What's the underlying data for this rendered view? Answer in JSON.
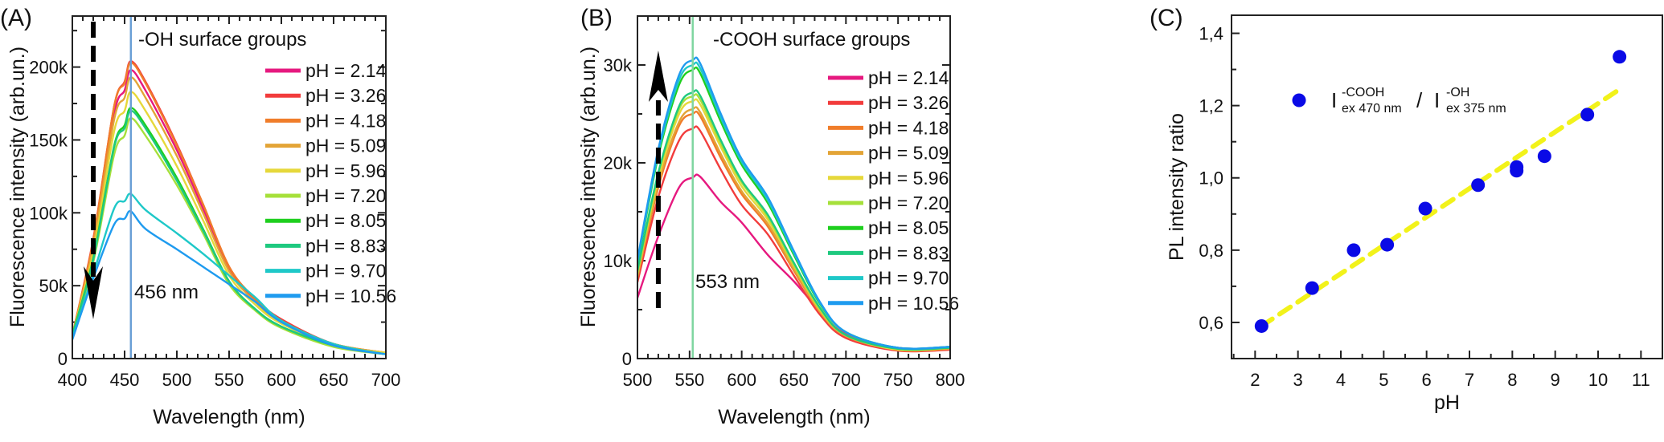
{
  "chart_data": [
    {
      "type": "line",
      "panel_label": "(A)",
      "annotation": "-OH surface groups",
      "peak_label": "456 nm",
      "peak_line": {
        "x": 456,
        "color": "#6a9fd6"
      },
      "arrow": {
        "x": 420,
        "direction": "down"
      },
      "xlabel": "Wavelength (nm)",
      "ylabel": "Fluorescence intensity (arb.un.)",
      "xlim": [
        400,
        700
      ],
      "ylim": [
        0,
        235000
      ],
      "xticks": [
        400,
        450,
        500,
        550,
        600,
        650,
        700
      ],
      "xtick_labels": [
        "400",
        "450",
        "500",
        "550",
        "600",
        "650",
        "700"
      ],
      "yticks": [
        0,
        50000,
        100000,
        150000,
        200000
      ],
      "ytick_labels": [
        "0",
        "50k",
        "100k",
        "150k",
        "200k"
      ],
      "legend_position": "right",
      "x": [
        400,
        420,
        440,
        450,
        456,
        470,
        500,
        525,
        550,
        575,
        600,
        650,
        700
      ],
      "series": [
        {
          "name": "pH = 2.14",
          "color": "#e6197f",
          "values": [
            16000,
            79000,
            168000,
            184000,
            198000,
            184000,
            143000,
            103000,
            61000,
            40000,
            26000,
            10000,
            4000
          ]
        },
        {
          "name": "pH = 3.26",
          "color": "#f23c3c",
          "values": [
            16000,
            82000,
            173000,
            190000,
            204000,
            190000,
            147000,
            106000,
            63000,
            41000,
            27000,
            10000,
            4000
          ]
        },
        {
          "name": "pH = 4.18",
          "color": "#f07d2a",
          "values": [
            16000,
            81000,
            173000,
            189000,
            203000,
            189000,
            146000,
            106000,
            63000,
            41000,
            26000,
            10000,
            4000
          ]
        },
        {
          "name": "pH = 5.09",
          "color": "#e3a436",
          "values": [
            16000,
            77000,
            164000,
            179000,
            193000,
            179000,
            139000,
            100000,
            60000,
            39000,
            25000,
            10000,
            4000
          ]
        },
        {
          "name": "pH = 5.96",
          "color": "#e6d83a",
          "values": [
            16000,
            73000,
            156000,
            170000,
            183000,
            170000,
            132000,
            95000,
            57000,
            37000,
            24000,
            9000,
            4000
          ]
        },
        {
          "name": "pH = 7.20",
          "color": "#a6e03a",
          "values": [
            16000,
            66000,
            140000,
            153000,
            165000,
            153000,
            119000,
            86000,
            51000,
            33000,
            21000,
            8000,
            3000
          ]
        },
        {
          "name": "pH = 8.05",
          "color": "#1ecf1e",
          "values": [
            16000,
            69000,
            146000,
            160000,
            172000,
            160000,
            124000,
            89000,
            53000,
            34000,
            22000,
            9000,
            3000
          ]
        },
        {
          "name": "pH = 8.83",
          "color": "#1ec97f",
          "values": [
            16000,
            68000,
            145000,
            158000,
            170000,
            158000,
            122000,
            88000,
            53000,
            34000,
            22000,
            9000,
            3000
          ]
        },
        {
          "name": "pH = 9.70",
          "color": "#1ec8c8",
          "values": [
            14000,
            58000,
            103000,
            108000,
            113000,
            102000,
            86000,
            72000,
            57000,
            42000,
            26000,
            10000,
            3000
          ]
        },
        {
          "name": "pH = 10.56",
          "color": "#1e9bef",
          "values": [
            13000,
            55000,
            92000,
            96000,
            101000,
            89000,
            75000,
            63000,
            51000,
            39000,
            25000,
            9000,
            3000
          ]
        }
      ]
    },
    {
      "type": "line",
      "panel_label": "(B)",
      "annotation": "-COOH surface groups",
      "peak_label": "553 nm",
      "peak_line": {
        "x": 553,
        "color": "#7fd6a0"
      },
      "arrow": {
        "x": 520,
        "direction": "up"
      },
      "xlabel": "Wavelength (nm)",
      "ylabel": "Fluorescence intensity (arb.un.)",
      "xlim": [
        500,
        800
      ],
      "ylim": [
        0,
        35000
      ],
      "xticks": [
        500,
        550,
        600,
        650,
        700,
        750,
        800
      ],
      "xtick_labels": [
        "500",
        "550",
        "600",
        "650",
        "700",
        "750",
        "800"
      ],
      "yticks": [
        0,
        10000,
        20000,
        30000
      ],
      "ytick_labels": [
        "0",
        "10k",
        "20k",
        "30k"
      ],
      "legend_position": "right",
      "x": [
        500,
        520,
        540,
        553,
        560,
        580,
        600,
        625,
        650,
        675,
        700,
        750,
        800
      ],
      "series": [
        {
          "name": "pH = 2.14",
          "color": "#e6197f",
          "values": [
            6200,
            12500,
            17500,
            18500,
            18600,
            16000,
            13900,
            10600,
            7900,
            4900,
            2500,
            1100,
            1100
          ]
        },
        {
          "name": "pH = 3.26",
          "color": "#f23c3c",
          "values": [
            7800,
            16500,
            22300,
            23500,
            23300,
            19300,
            15700,
            12700,
            8500,
            4500,
            2100,
            800,
            900
          ]
        },
        {
          "name": "pH = 4.18",
          "color": "#f07d2a",
          "values": [
            8300,
            17500,
            23800,
            25000,
            24800,
            20500,
            16800,
            13500,
            9000,
            4800,
            2300,
            900,
            1000
          ]
        },
        {
          "name": "pH = 5.09",
          "color": "#e3a436",
          "values": [
            8400,
            17900,
            24200,
            25500,
            25200,
            20900,
            17100,
            13800,
            9200,
            4800,
            2300,
            900,
            1000
          ]
        },
        {
          "name": "pH = 5.96",
          "color": "#e6d83a",
          "values": [
            8700,
            18400,
            25000,
            26300,
            26000,
            21600,
            17600,
            14200,
            9500,
            5000,
            2400,
            900,
            1100
          ]
        },
        {
          "name": "pH = 7.20",
          "color": "#a6e03a",
          "values": [
            8800,
            18800,
            25500,
            26800,
            26500,
            22000,
            18000,
            14500,
            9600,
            5100,
            2400,
            1000,
            1100
          ]
        },
        {
          "name": "pH = 8.05",
          "color": "#1ecf1e",
          "values": [
            9700,
            20700,
            28000,
            29500,
            29200,
            24200,
            19800,
            15900,
            10600,
            5600,
            2700,
            1100,
            1200
          ]
        },
        {
          "name": "pH = 8.83",
          "color": "#1ec97f",
          "values": [
            9000,
            19000,
            25800,
            27200,
            26900,
            22300,
            18200,
            14700,
            9800,
            5200,
            2400,
            1000,
            1100
          ]
        },
        {
          "name": "pH = 9.70",
          "color": "#1ec8c8",
          "values": [
            9900,
            21000,
            28500,
            30000,
            29700,
            24600,
            20100,
            16200,
            10800,
            5700,
            2700,
            1100,
            1200
          ]
        },
        {
          "name": "pH = 10.56",
          "color": "#1e9bef",
          "values": [
            10100,
            21400,
            29000,
            30500,
            30200,
            25000,
            20400,
            16500,
            11000,
            5800,
            2700,
            1100,
            1200
          ]
        }
      ]
    },
    {
      "type": "scatter",
      "panel_label": "(C)",
      "xlabel": "pH",
      "ylabel": "PL intensity ratio",
      "xlim": [
        1.45,
        11.5
      ],
      "ylim": [
        0.5,
        1.45
      ],
      "xticks": [
        2,
        3,
        4,
        5,
        6,
        7,
        8,
        9,
        10,
        11
      ],
      "xtick_labels": [
        "2",
        "3",
        "4",
        "5",
        "6",
        "7",
        "8",
        "9",
        "10",
        "11"
      ],
      "yticks": [
        0.6,
        0.8,
        1.0,
        1.2,
        1.4
      ],
      "ytick_labels": [
        "0,6",
        "0,8",
        "1,0",
        "1,2",
        "1,4"
      ],
      "legend_position": "top-left",
      "legend": {
        "I": "I",
        "sup1": "-COOH",
        "sub1": "ex 470 nm",
        "slash": "/",
        "sup2": "-OH",
        "sub2": "ex 375 nm"
      },
      "marker_color": "#0a0ae6",
      "fit_color": "#f2f21a",
      "points": {
        "x": [
          2.15,
          3.33,
          4.3,
          5.08,
          5.97,
          7.2,
          8.1,
          8.1,
          8.75,
          9.75,
          10.5
        ],
        "y": [
          0.59,
          0.695,
          0.8,
          0.815,
          0.915,
          0.98,
          1.02,
          1.03,
          1.06,
          1.175,
          1.335
        ]
      },
      "fit_line": {
        "x": [
          2.15,
          10.5
        ],
        "y": [
          0.59,
          1.245
        ],
        "style": "dashed"
      }
    }
  ]
}
